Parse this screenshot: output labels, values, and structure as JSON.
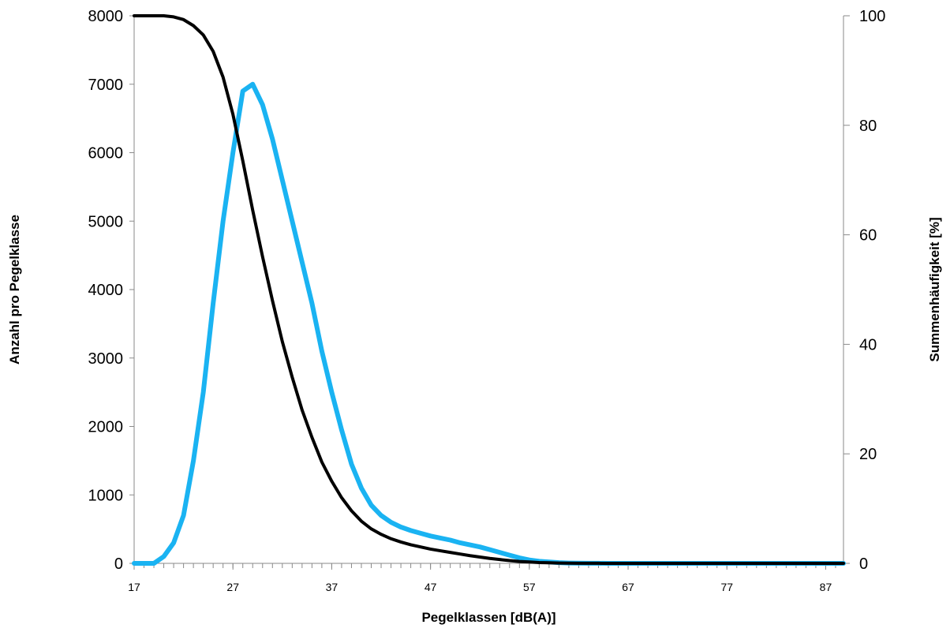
{
  "chart_data": {
    "type": "line",
    "xlabel": "Pegelklassen [dB(A)]",
    "ylabel": "Anzahl pro Pegelklasse",
    "y2label": "Summenhäufigkeit [%]",
    "xlim": [
      17,
      88.8
    ],
    "ylim": [
      0,
      8000
    ],
    "y2lim": [
      0,
      100
    ],
    "x_ticks": [
      17,
      27,
      37,
      47,
      57,
      67,
      77,
      87
    ],
    "y_ticks": [
      0,
      1000,
      2000,
      3000,
      4000,
      5000,
      6000,
      7000,
      8000
    ],
    "y2_ticks": [
      0,
      20,
      40,
      60,
      80,
      100
    ],
    "grid": false,
    "legend": "none",
    "series": [
      {
        "axis": "left",
        "color": "#1ab3f2",
        "x": [
          17,
          18,
          19,
          20,
          21,
          22,
          23,
          24,
          25,
          26,
          27,
          28,
          29,
          30,
          31,
          32,
          33,
          34,
          35,
          36,
          37,
          38,
          39,
          40,
          41,
          42,
          43,
          44,
          45,
          46,
          47,
          48,
          49,
          50,
          51,
          52,
          53,
          54,
          55,
          56,
          57,
          58,
          59,
          60,
          61,
          62,
          63,
          64,
          65,
          66,
          67,
          68,
          70,
          75,
          80,
          85,
          88.8
        ],
        "values": [
          0,
          0,
          0,
          100,
          300,
          700,
          1500,
          2500,
          3800,
          5000,
          6000,
          6900,
          7000,
          6700,
          6200,
          5600,
          5000,
          4400,
          3800,
          3100,
          2500,
          1950,
          1450,
          1100,
          850,
          700,
          600,
          530,
          480,
          440,
          400,
          370,
          340,
          300,
          270,
          240,
          200,
          160,
          120,
          80,
          50,
          30,
          20,
          10,
          5,
          3,
          2,
          1,
          0,
          0,
          0,
          0,
          0,
          0,
          0,
          0,
          0
        ]
      },
      {
        "axis": "right",
        "color": "#000000",
        "x": [
          17,
          18,
          19,
          20,
          21,
          22,
          23,
          24,
          25,
          26,
          27,
          28,
          29,
          30,
          31,
          32,
          33,
          34,
          35,
          36,
          37,
          38,
          39,
          40,
          41,
          42,
          43,
          44,
          45,
          46,
          47,
          48,
          49,
          50,
          51,
          52,
          53,
          54,
          55,
          56,
          57,
          58,
          59,
          60,
          62,
          64,
          66,
          70,
          75,
          80,
          85,
          88.8
        ],
        "values": [
          100,
          100,
          100,
          100,
          99.8,
          99.3,
          98.2,
          96.5,
          93.5,
          88.8,
          82,
          73.5,
          64.5,
          56,
          48,
          40.5,
          34,
          28,
          23,
          18.5,
          15,
          12,
          9.6,
          7.7,
          6.3,
          5.3,
          4.5,
          3.9,
          3.4,
          3.0,
          2.6,
          2.3,
          2.0,
          1.7,
          1.4,
          1.15,
          0.9,
          0.7,
          0.5,
          0.35,
          0.25,
          0.15,
          0.1,
          0.05,
          0.02,
          0.01,
          0,
          0,
          0,
          0,
          0,
          0
        ]
      }
    ]
  }
}
